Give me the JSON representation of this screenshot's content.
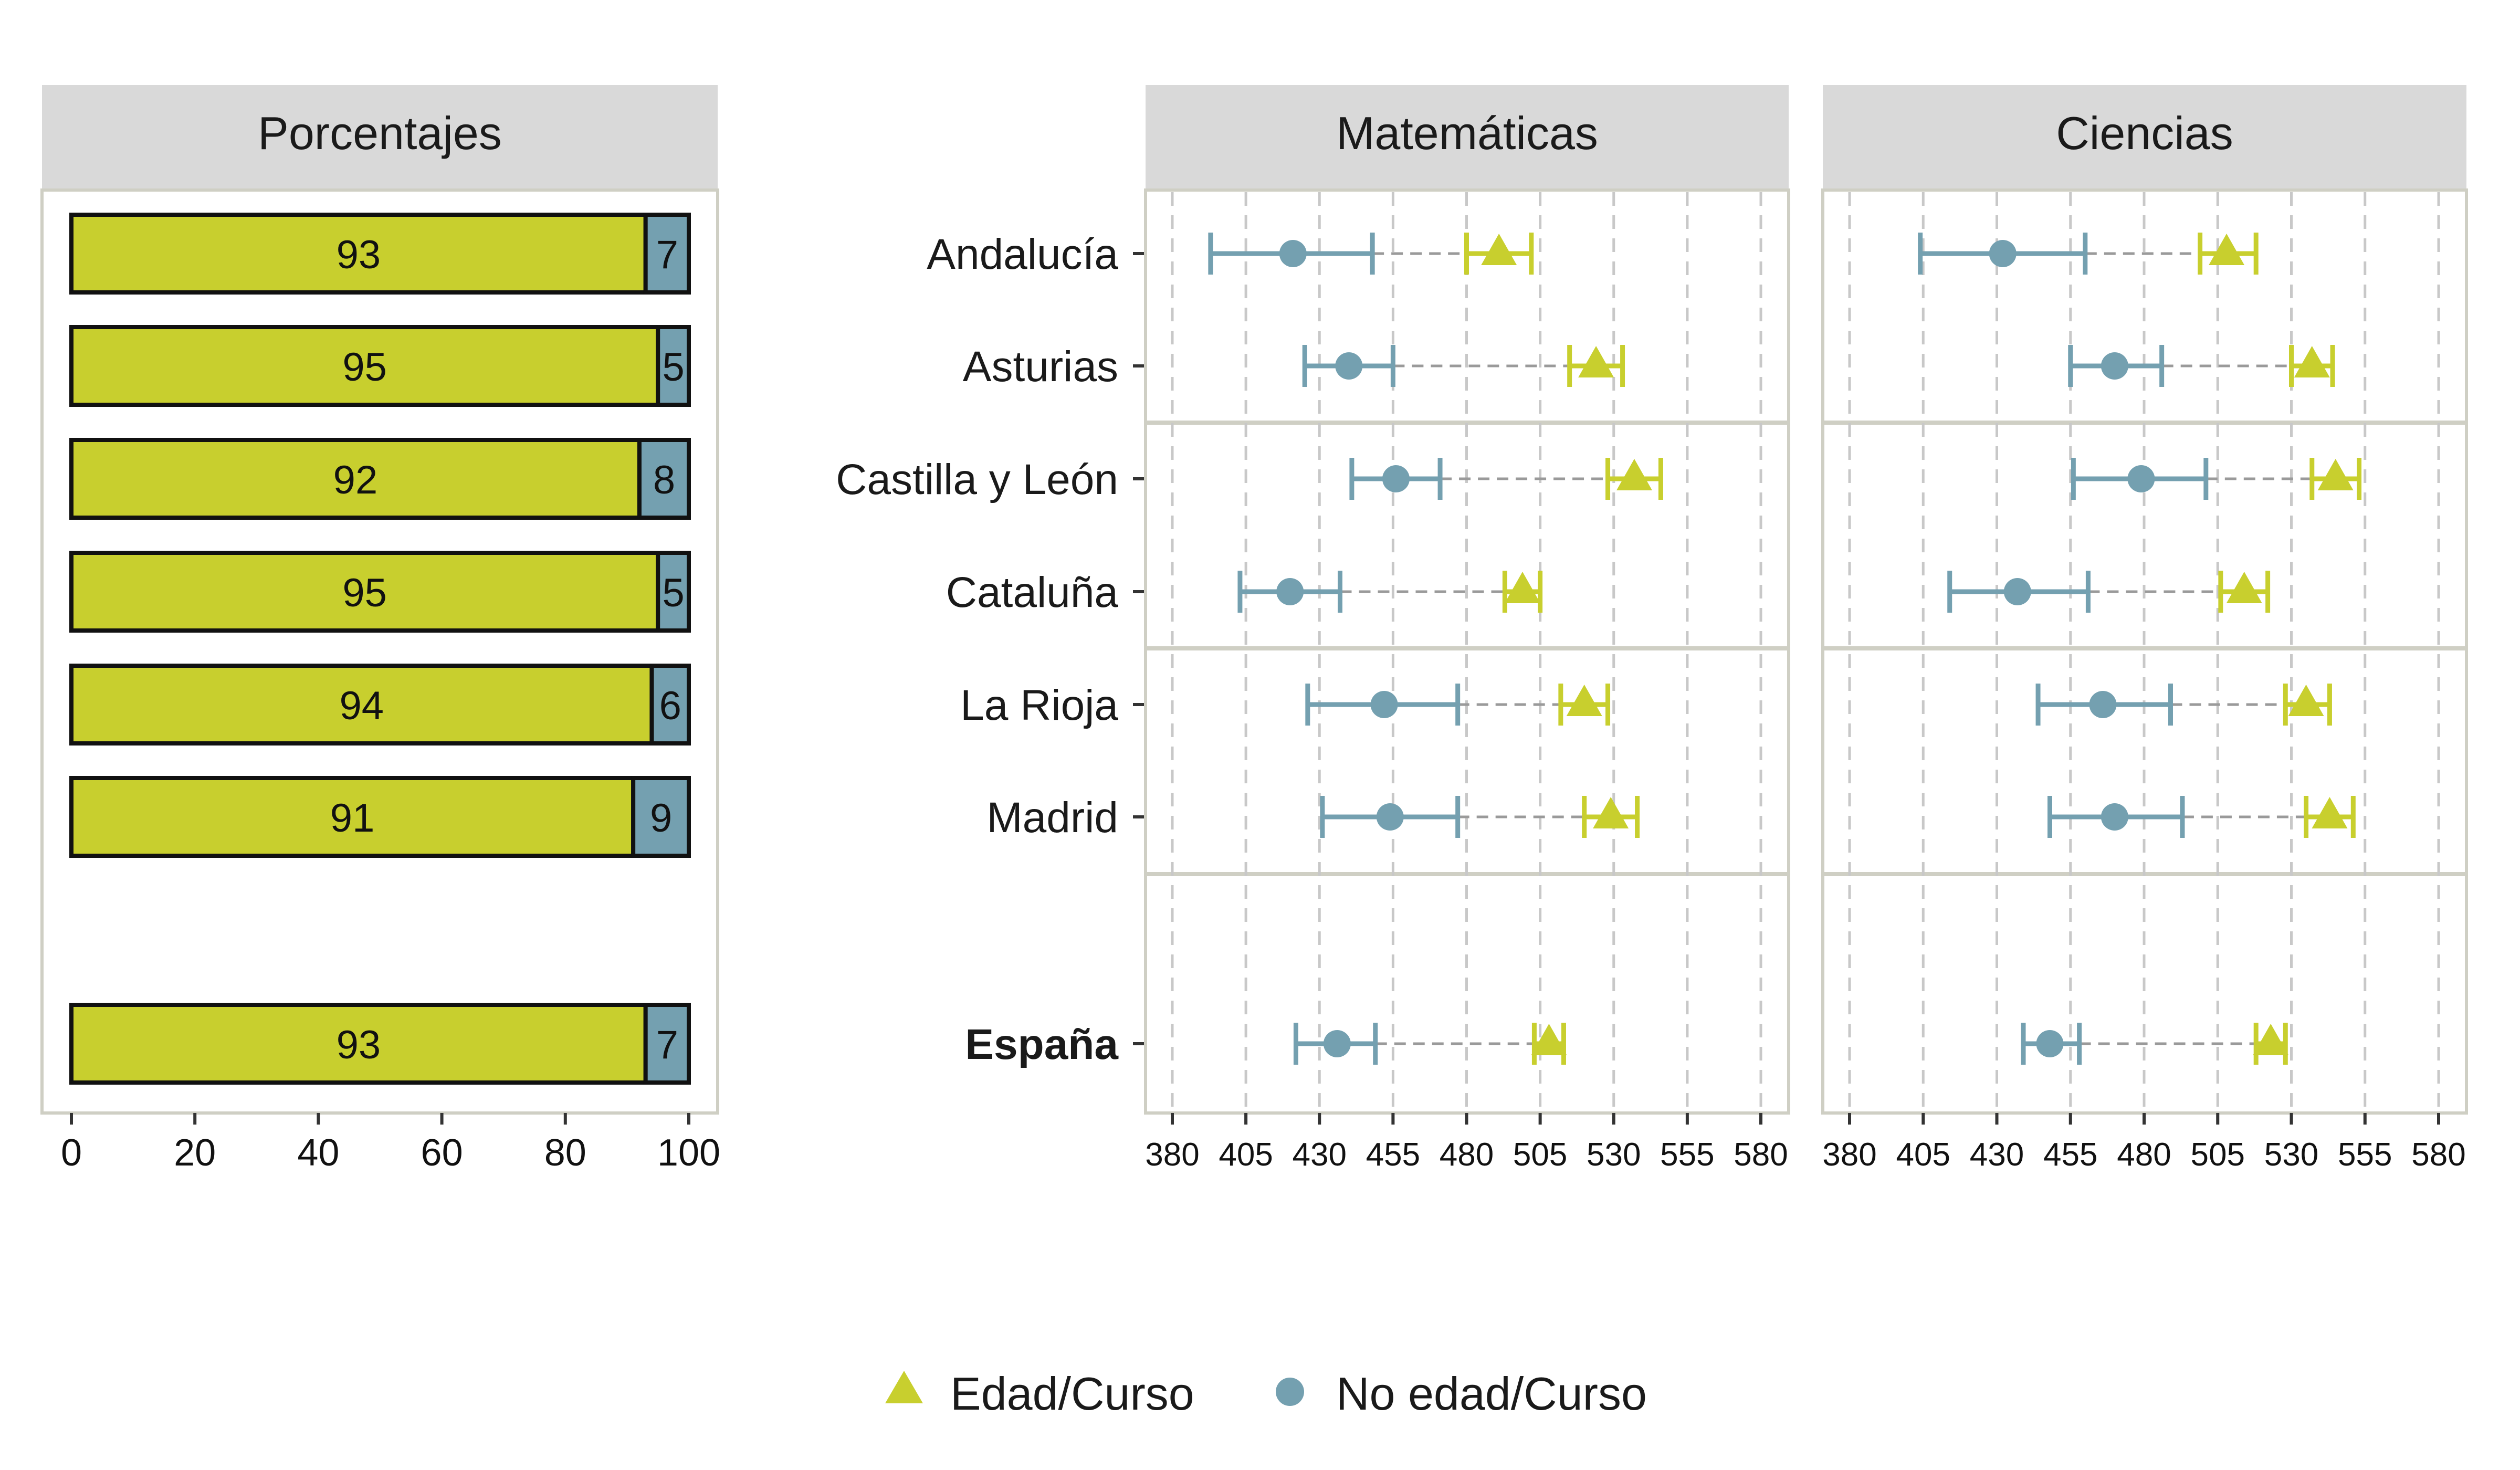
{
  "colors": {
    "edad": "#c8cf2e",
    "no_edad": "#74a0b0",
    "strip_bg": "#d9d9d9",
    "panel_border": "#cfcfc4",
    "grid": "#c8c8c8",
    "dashed_link": "#9a9a9a"
  },
  "chart_data": [
    {
      "type": "bar",
      "title": "Porcentajes",
      "categories": [
        "Andalucía",
        "Asturias",
        "Castilla y León",
        "Cataluña",
        "La Rioja",
        "Madrid",
        "España"
      ],
      "series": [
        {
          "name": "Edad/Curso",
          "values": [
            93,
            95,
            92,
            95,
            94,
            91,
            93
          ]
        },
        {
          "name": "No edad/Curso",
          "values": [
            7,
            5,
            8,
            5,
            6,
            9,
            7
          ]
        }
      ],
      "xlim": [
        0,
        100
      ],
      "xticks": [
        0,
        20,
        40,
        60,
        80,
        100
      ],
      "stacked": true
    },
    {
      "type": "scatter",
      "title": "Matemáticas",
      "categories": [
        "Andalucía",
        "Asturias",
        "Castilla y León",
        "Cataluña",
        "La Rioja",
        "Madrid",
        "España"
      ],
      "series": [
        {
          "name": "Edad/Curso",
          "values": [
            491,
            524,
            537,
            499,
            520,
            529,
            508
          ],
          "ci_low": [
            480,
            515,
            528,
            493,
            512,
            520,
            503
          ],
          "ci_high": [
            502,
            533,
            546,
            505,
            528,
            538,
            513
          ]
        },
        {
          "name": "No edad/Curso",
          "values": [
            421,
            440,
            456,
            420,
            452,
            454,
            436
          ],
          "ci_low": [
            393,
            425,
            441,
            403,
            426,
            431,
            422
          ],
          "ci_high": [
            448,
            455,
            471,
            437,
            477,
            477,
            449
          ]
        }
      ],
      "xlim": [
        370,
        590
      ],
      "xticks": [
        380,
        405,
        430,
        455,
        480,
        505,
        530,
        555,
        580
      ],
      "grid": true
    },
    {
      "type": "scatter",
      "title": "Ciencias",
      "categories": [
        "Andalucía",
        "Asturias",
        "Castilla y León",
        "Cataluña",
        "La Rioja",
        "Madrid",
        "España"
      ],
      "series": [
        {
          "name": "Edad/Curso",
          "values": [
            508,
            537,
            545,
            514,
            535,
            543,
            523
          ],
          "ci_low": [
            499,
            530,
            537,
            506,
            528,
            535,
            518
          ],
          "ci_high": [
            518,
            544,
            553,
            522,
            543,
            551,
            528
          ]
        },
        {
          "name": "No edad/Curso",
          "values": [
            432,
            470,
            479,
            437,
            466,
            470,
            448
          ],
          "ci_low": [
            404,
            455,
            456,
            414,
            444,
            448,
            439
          ],
          "ci_high": [
            460,
            486,
            501,
            461,
            489,
            493,
            458
          ]
        }
      ],
      "xlim": [
        370,
        590
      ],
      "xticks": [
        380,
        405,
        430,
        455,
        480,
        505,
        530,
        555,
        580
      ],
      "grid": true
    }
  ],
  "legend": {
    "position": "bottom",
    "items": [
      {
        "label": "Edad/Curso",
        "shape": "triangle"
      },
      {
        "label": "No edad/Curso",
        "shape": "circle"
      }
    ]
  },
  "bold_categories": [
    "España"
  ]
}
